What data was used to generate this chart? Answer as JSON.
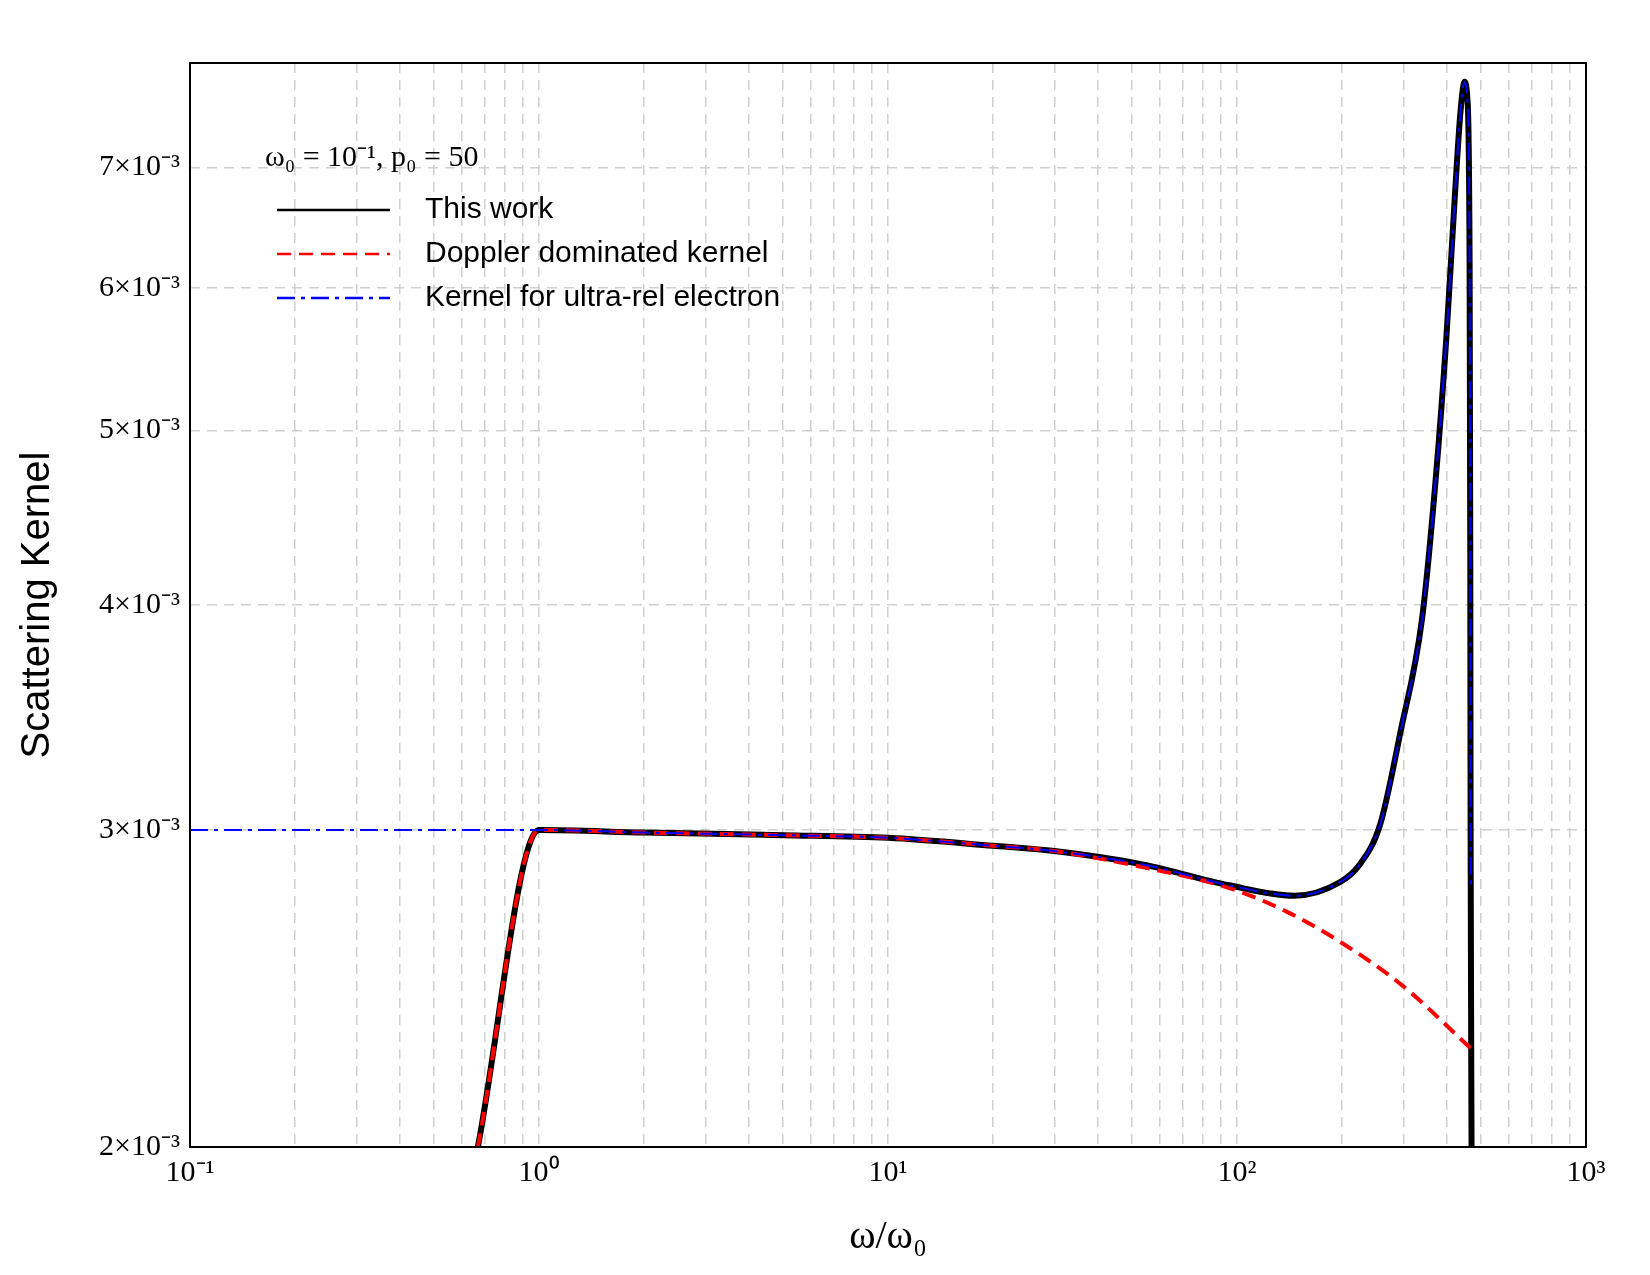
{
  "chart_data": {
    "type": "line",
    "xlabel": "ω/ω₀",
    "ylabel": "Scattering Kernel",
    "legend_title": "ω₀ = 10⁻¹, p₀ = 50",
    "log": "xy",
    "grid": true,
    "legend": "top left",
    "marker": "none",
    "xlim": [
      0.1,
      1000
    ],
    "ylim": [
      0.002,
      0.008
    ],
    "xticks": [
      {
        "value": 0.1,
        "label": "10⁻¹"
      },
      {
        "value": 0.2,
        "label": null
      },
      {
        "value": 0.3,
        "label": null
      },
      {
        "value": 0.4,
        "label": null
      },
      {
        "value": 0.5,
        "label": null
      },
      {
        "value": 0.6,
        "label": null
      },
      {
        "value": 0.7,
        "label": null
      },
      {
        "value": 0.8,
        "label": null
      },
      {
        "value": 0.9,
        "label": null
      },
      {
        "value": 1,
        "label": "10⁰"
      },
      {
        "value": 2,
        "label": null
      },
      {
        "value": 3,
        "label": null
      },
      {
        "value": 4,
        "label": null
      },
      {
        "value": 5,
        "label": null
      },
      {
        "value": 6,
        "label": null
      },
      {
        "value": 7,
        "label": null
      },
      {
        "value": 8,
        "label": null
      },
      {
        "value": 9,
        "label": null
      },
      {
        "value": 10,
        "label": "10¹"
      },
      {
        "value": 20,
        "label": null
      },
      {
        "value": 30,
        "label": null
      },
      {
        "value": 40,
        "label": null
      },
      {
        "value": 50,
        "label": null
      },
      {
        "value": 60,
        "label": null
      },
      {
        "value": 70,
        "label": null
      },
      {
        "value": 80,
        "label": null
      },
      {
        "value": 90,
        "label": null
      },
      {
        "value": 100,
        "label": "10²"
      },
      {
        "value": 200,
        "label": null
      },
      {
        "value": 300,
        "label": null
      },
      {
        "value": 400,
        "label": null
      },
      {
        "value": 500,
        "label": null
      },
      {
        "value": 600,
        "label": null
      },
      {
        "value": 700,
        "label": null
      },
      {
        "value": 800,
        "label": null
      },
      {
        "value": 900,
        "label": null
      },
      {
        "value": 1000,
        "label": "10³"
      }
    ],
    "yticks": [
      {
        "value": 0.002,
        "label": "2×10⁻³"
      },
      {
        "value": 0.003,
        "label": "3×10⁻³"
      },
      {
        "value": 0.004,
        "label": "4×10⁻³"
      },
      {
        "value": 0.005,
        "label": "5×10⁻³"
      },
      {
        "value": 0.006,
        "label": "6×10⁻³"
      },
      {
        "value": 0.007,
        "label": "7×10⁻³"
      }
    ],
    "series": [
      {
        "name": "This work",
        "color": "#000000",
        "line_style": "solid",
        "x": [
          0.668,
          1,
          2,
          5,
          10,
          20,
          30,
          54,
          95,
          146,
          197,
          223,
          257,
          294,
          339,
          371,
          398,
          421,
          437,
          449,
          457,
          464,
          466,
          467,
          470
        ],
        "values": [
          0.002,
          0.003,
          0.00299,
          0.00298,
          0.00297,
          0.00294,
          0.00292,
          0.00287,
          0.002795,
          0.002758,
          0.002806,
          0.002865,
          0.00302,
          0.0034,
          0.00393,
          0.0047,
          0.00563,
          0.00675,
          0.00752,
          0.00781,
          0.00765,
          0.00616,
          0.0043,
          0.003,
          0.002
        ]
      },
      {
        "name": "Doppler dominated kernel",
        "color": "#ff0000",
        "line_style": "dashed",
        "x": [
          0.668,
          1,
          2,
          5,
          10,
          20,
          30,
          54,
          95,
          140,
          205,
          299,
          471
        ],
        "values": [
          0.002,
          0.003,
          0.00299,
          0.00298,
          0.00297,
          0.00294,
          0.00292,
          0.00286,
          0.002785,
          0.0027,
          0.002588,
          0.002457,
          0.002266
        ]
      },
      {
        "name": "Kernel for ultra-rel electron",
        "color": "#0000ff",
        "line_style": "dashdot",
        "x": [
          0.1,
          0.2,
          0.5,
          1,
          2,
          5,
          10,
          20,
          30,
          54,
          95,
          146,
          197,
          223,
          257,
          294,
          339,
          371,
          398,
          421,
          437,
          449,
          457,
          464,
          466,
          467,
          468
        ],
        "values": [
          0.003,
          0.003,
          0.003,
          0.003,
          0.00299,
          0.00298,
          0.00297,
          0.00294,
          0.00292,
          0.00287,
          0.002795,
          0.002758,
          0.002806,
          0.002865,
          0.00302,
          0.0034,
          0.00393,
          0.0047,
          0.00563,
          0.00675,
          0.00752,
          0.00781,
          0.00765,
          0.00616,
          0.0043,
          0.003,
          0.0028
        ]
      }
    ]
  }
}
